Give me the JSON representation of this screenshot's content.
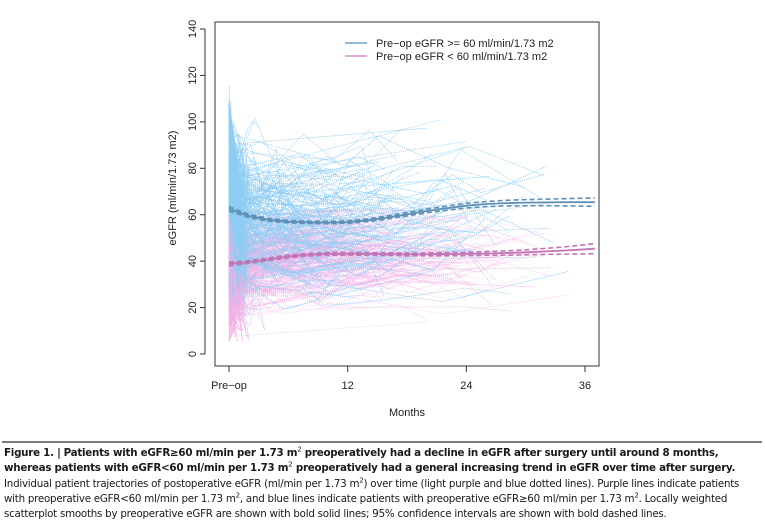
{
  "chart_data": {
    "type": "line",
    "title": "",
    "xlabel": "Months",
    "ylabel": "eGFR (ml/min/1.73 m2)",
    "xlim": [
      -1,
      37
    ],
    "ylim": [
      -7,
      141
    ],
    "x_ticks": [
      {
        "value": 0,
        "label": "Pre−op"
      },
      {
        "value": 12,
        "label": "12"
      },
      {
        "value": 24,
        "label": "24"
      },
      {
        "value": 36,
        "label": "36"
      }
    ],
    "y_ticks": [
      0,
      20,
      40,
      60,
      80,
      100,
      120,
      140
    ],
    "grid": false,
    "legend_position": "top-right",
    "legend": [
      {
        "label": "Pre−op eGFR >= 60 ml/min/1.73 m2",
        "color": "#6fa3c8"
      },
      {
        "label": "Pre−op eGFR < 60 ml/min/1.73 m2",
        "color": "#d58fc9"
      }
    ],
    "series": [
      {
        "name": "Pre-op eGFR >= 60 ml/min/1.73 m2 (LOESS smooth)",
        "color": "#5f8fb5",
        "style": "solid-bold",
        "x": [
          0,
          2,
          4,
          6,
          8,
          10,
          12,
          14,
          16,
          18,
          20,
          22,
          24,
          26,
          28,
          30,
          32,
          34,
          36,
          37
        ],
        "y": [
          62.5,
          59.5,
          57.8,
          57.0,
          56.7,
          56.6,
          56.8,
          57.6,
          58.8,
          60.2,
          61.6,
          62.8,
          63.9,
          64.6,
          65.0,
          65.2,
          65.3,
          65.4,
          65.4,
          65.4
        ],
        "ci_lower": [
          61.5,
          58.8,
          57.2,
          56.5,
          56.2,
          56.1,
          56.3,
          57.0,
          58.1,
          59.5,
          60.8,
          61.9,
          62.9,
          63.5,
          63.8,
          63.9,
          63.9,
          63.8,
          63.7,
          63.6
        ],
        "ci_upper": [
          63.5,
          60.2,
          58.4,
          57.5,
          57.2,
          57.1,
          57.3,
          58.2,
          59.5,
          60.9,
          62.4,
          63.7,
          64.9,
          65.7,
          66.2,
          66.5,
          66.7,
          66.9,
          67.1,
          67.2
        ]
      },
      {
        "name": "Pre-op eGFR < 60 ml/min/1.73 m2 (LOESS smooth)",
        "color": "#c274b4",
        "style": "solid-bold",
        "x": [
          0,
          2,
          4,
          6,
          8,
          10,
          12,
          14,
          16,
          18,
          20,
          22,
          24,
          26,
          28,
          30,
          32,
          34,
          36,
          37
        ],
        "y": [
          38.8,
          39.6,
          40.8,
          42.0,
          42.8,
          43.1,
          43.2,
          43.1,
          43.0,
          42.9,
          42.9,
          43.0,
          43.1,
          43.3,
          43.5,
          43.8,
          44.2,
          44.6,
          45.1,
          45.4
        ],
        "ci_lower": [
          38.0,
          39.0,
          40.2,
          41.4,
          42.2,
          42.5,
          42.6,
          42.5,
          42.4,
          42.3,
          42.3,
          42.3,
          42.4,
          42.5,
          42.6,
          42.7,
          42.9,
          43.0,
          43.1,
          43.2
        ],
        "ci_upper": [
          39.6,
          40.2,
          41.4,
          42.6,
          43.4,
          43.7,
          43.8,
          43.7,
          43.6,
          43.5,
          43.5,
          43.7,
          43.8,
          44.1,
          44.4,
          44.9,
          45.5,
          46.2,
          47.1,
          47.6
        ]
      }
    ],
    "background_trajectories": [
      {
        "group": "Pre-op eGFR >= 60 ml/min/1.73 m2",
        "color": "#8ecdf3",
        "style": "dotted",
        "description": "individual patient trajectories, light blue dotted lines, approx range 0-138"
      },
      {
        "group": "Pre-op eGFR < 60 ml/min/1.73 m2",
        "color": "#f2b0e8",
        "style": "dotted",
        "description": "individual patient trajectories, light purple dotted lines, approx range 3-60"
      }
    ]
  },
  "caption": {
    "label": "Figure 1. |",
    "bold_part1": "Patients with eGFR≥60 ml/min per 1.73 m",
    "bold_part2": " preoperatively had a decline in eGFR after surgery until around 8 months, whereas patients with eGFR<60 ml/min per 1.73 m",
    "bold_part3": " preoperatively had a general increasing trend in eGFR over time after surgery.",
    "text_part1": " Individual patient trajectories of postoperative eGFR (ml/min per 1.73 m",
    "text_part2": ") over time (light purple and blue dotted lines). Purple lines indicate patients with preoperative eGFR<60 ml/min per 1.73 m",
    "text_part3": ", and blue lines indicate patients with preoperative eGFR≥60 ml/min per 1.73 m",
    "text_part4": ". Locally weighted scatterplot smooths by preoperative eGFR are shown with bold solid lines; 95% confidence intervals are shown with bold dashed lines.",
    "superscript": "2"
  }
}
